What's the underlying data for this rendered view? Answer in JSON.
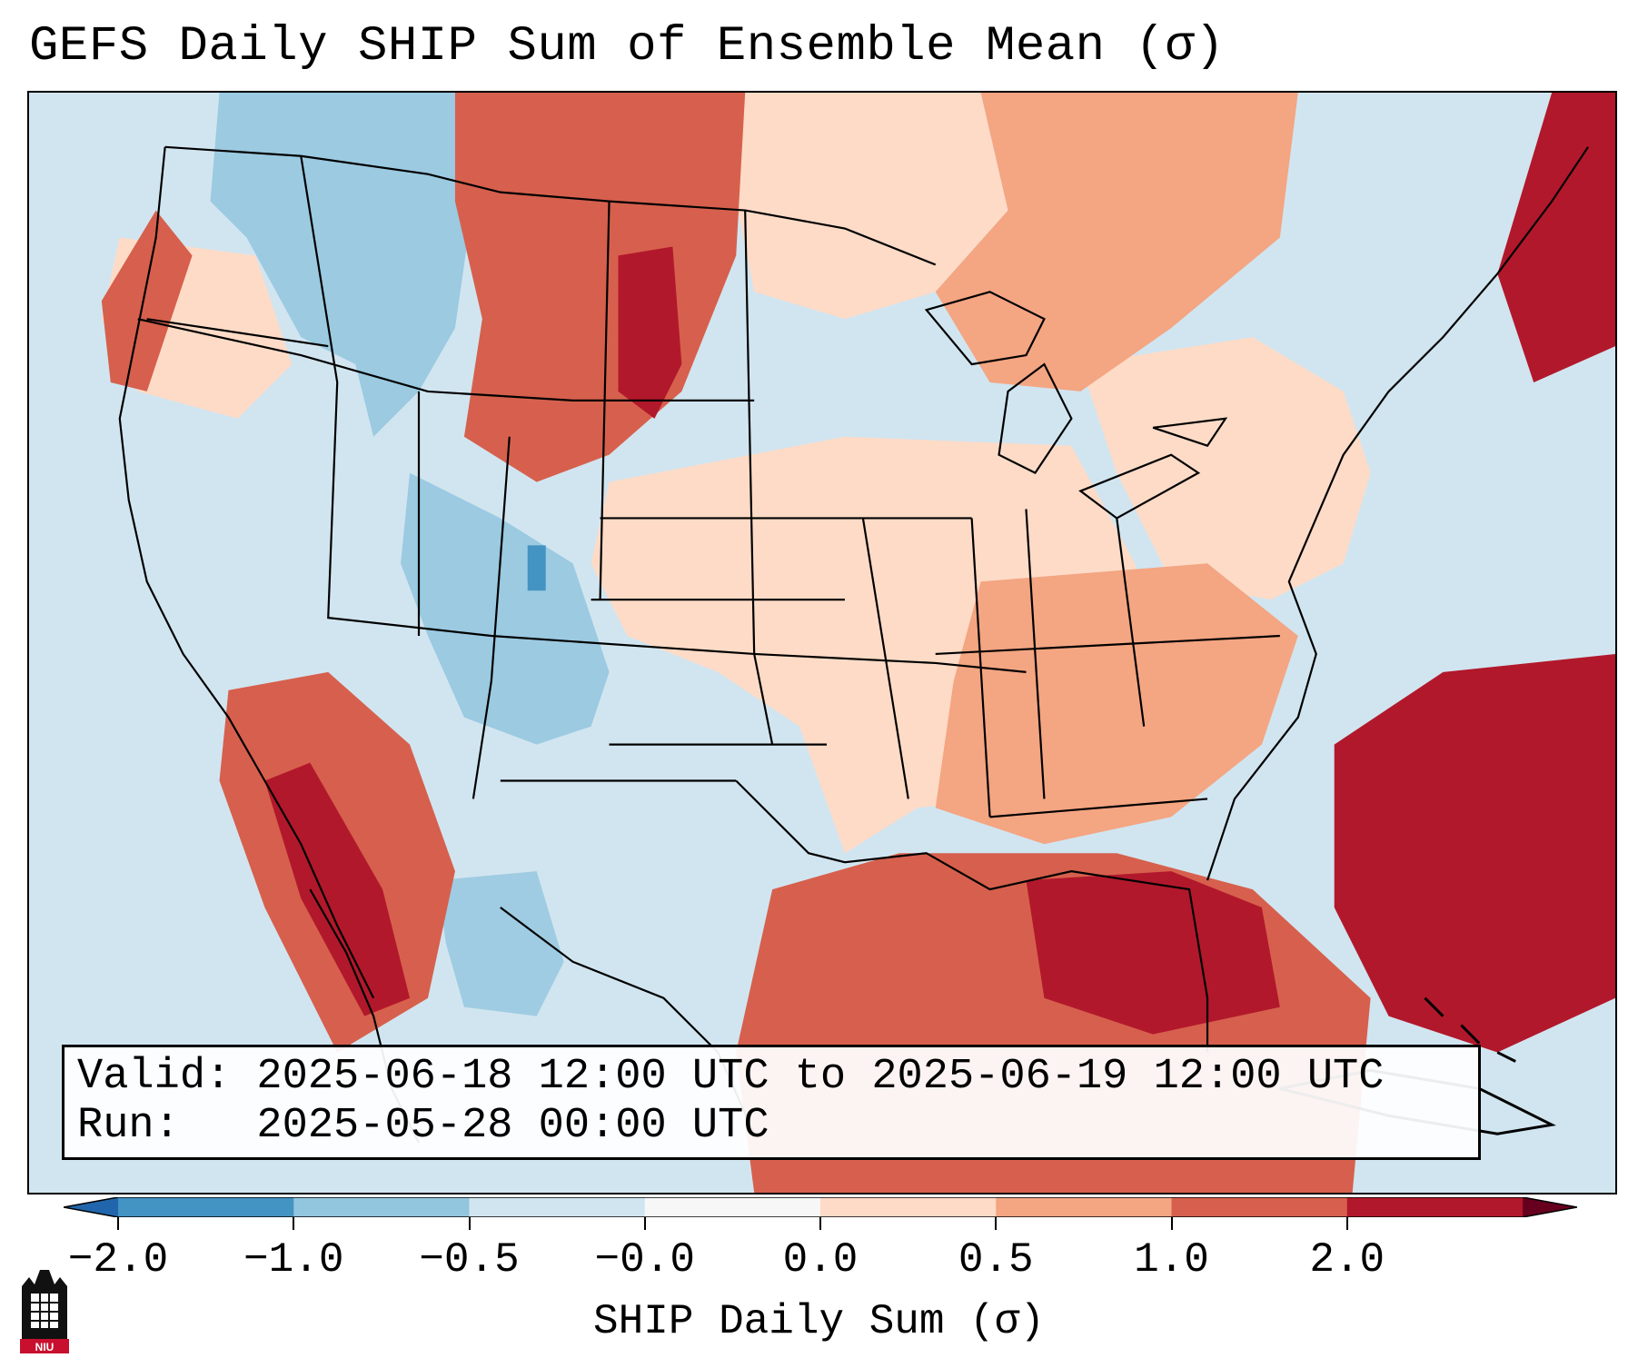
{
  "title": "GEFS Daily SHIP Sum of Ensemble Mean (σ)",
  "info": {
    "valid_line": "Valid: 2025-06-18 12:00 UTC to 2025-06-19 12:00 UTC",
    "run_line": "Run:   2025-05-28 00:00 UTC"
  },
  "colorbar": {
    "label": "SHIP Daily Sum (σ)",
    "tick_labels": [
      "−2.0",
      "−1.0",
      "−0.5",
      "−0.0",
      "0.0",
      "0.5",
      "1.0",
      "2.0"
    ],
    "bin_colors": [
      "#4393c3",
      "#92c5de",
      "#d1e5f0",
      "#f7f7f7",
      "#fddbc7",
      "#f4a582",
      "#d6604d",
      "#b2182b"
    ],
    "under_color": "#2166ac",
    "over_color": "#67001f"
  },
  "logo": {
    "icon": "niu-logo-icon",
    "text": "NIU"
  }
}
